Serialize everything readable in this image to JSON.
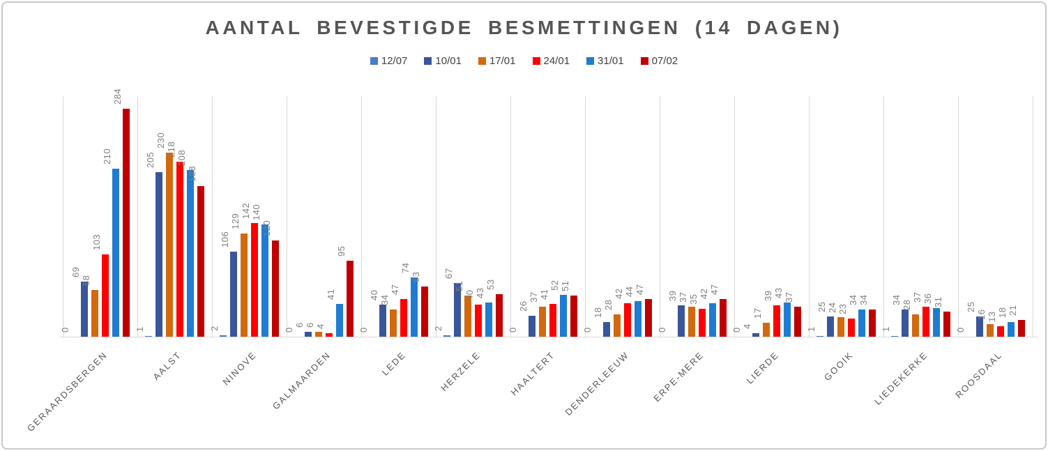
{
  "chart_data": {
    "type": "bar",
    "title": "AANTAL BEVESTIGDE BESMETTINGEN (14 DAGEN)",
    "categories": [
      "GERAARDSBERGEN",
      "AALST",
      "NINOVE",
      "GALMAARDEN",
      "LEDE",
      "HERZELE",
      "HAALTERT",
      "DENDERLEEUW",
      "ERPE-MERE",
      "LIERDE",
      "GOOIK",
      "LIEDEKERKE",
      "ROOSDAAL"
    ],
    "series": [
      {
        "name": "12/07",
        "color": "#4a7ccc",
        "values": [
          0,
          1,
          2,
          0,
          0,
          2,
          0,
          0,
          0,
          0,
          1,
          1,
          0
        ]
      },
      {
        "name": "10/01",
        "color": "#39569b",
        "values": [
          69,
          205,
          106,
          6,
          40,
          67,
          26,
          18,
          39,
          4,
          25,
          34,
          25
        ]
      },
      {
        "name": "17/01",
        "color": "#d2690e",
        "values": [
          58,
          230,
          129,
          6,
          34,
          51,
          37,
          28,
          37,
          17,
          24,
          28,
          16
        ]
      },
      {
        "name": "24/01",
        "color": "#ff0000",
        "values": [
          103,
          218,
          142,
          4,
          47,
          40,
          41,
          42,
          35,
          39,
          23,
          37,
          13
        ]
      },
      {
        "name": "31/01",
        "color": "#1e7cd2",
        "values": [
          210,
          208,
          140,
          41,
          74,
          43,
          52,
          44,
          42,
          43,
          34,
          36,
          18
        ]
      },
      {
        "name": "07/02",
        "color": "#c00000",
        "values": [
          284,
          188,
          120,
          95,
          63,
          53,
          51,
          47,
          47,
          37,
          34,
          31,
          21
        ]
      }
    ],
    "ylim": [
      0,
      300
    ],
    "xlabel": "",
    "ylabel": "",
    "grid": "vertical category separators only",
    "legend_position": "top",
    "value_labels": "rotated 90deg above each bar",
    "category_labels": "rotated 45deg below axis"
  },
  "style_colors": {
    "title": "#555555",
    "legend_text": "#404040",
    "value_label": "#7f7f7f",
    "category_label": "#595959",
    "gridline": "#d9d9d9",
    "border": "#c9c9c9"
  }
}
